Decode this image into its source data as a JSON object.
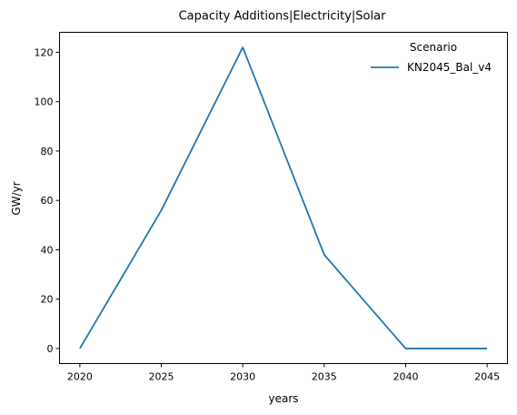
{
  "chart_data": {
    "type": "line",
    "title": "Capacity Additions|Electricity|Solar",
    "xlabel": "years",
    "ylabel": "GW/yr",
    "x": [
      2020,
      2025,
      2030,
      2035,
      2040,
      2045
    ],
    "series": [
      {
        "name": "KN2045_Bal_v4",
        "values": [
          0,
          56,
          122,
          38,
          0,
          0
        ],
        "color": "#1f77b4"
      }
    ],
    "xlim": [
      2018.75,
      2046.25
    ],
    "ylim": [
      -6.1,
      128.1
    ],
    "xticks": [
      2020,
      2025,
      2030,
      2035,
      2040,
      2045
    ],
    "yticks": [
      0,
      20,
      40,
      60,
      80,
      100,
      120
    ],
    "grid": false,
    "legend": {
      "title": "Scenario",
      "placement": "top-right"
    }
  }
}
